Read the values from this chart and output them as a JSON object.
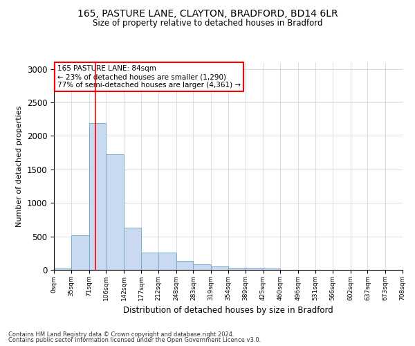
{
  "title_line1": "165, PASTURE LANE, CLAYTON, BRADFORD, BD14 6LR",
  "title_line2": "Size of property relative to detached houses in Bradford",
  "xlabel": "Distribution of detached houses by size in Bradford",
  "ylabel": "Number of detached properties",
  "footer_line1": "Contains HM Land Registry data © Crown copyright and database right 2024.",
  "footer_line2": "Contains public sector information licensed under the Open Government Licence v3.0.",
  "annotation_line1": "165 PASTURE LANE: 84sqm",
  "annotation_line2": "← 23% of detached houses are smaller (1,290)",
  "annotation_line3": "77% of semi-detached houses are larger (4,361) →",
  "property_sqm": 84,
  "bin_edges": [
    0,
    35,
    71,
    106,
    142,
    177,
    212,
    248,
    283,
    319,
    354,
    389,
    425,
    460,
    496,
    531,
    566,
    602,
    637,
    673,
    708
  ],
  "bar_heights": [
    25,
    520,
    2190,
    1730,
    635,
    260,
    260,
    130,
    80,
    55,
    35,
    30,
    20,
    5,
    5,
    0,
    0,
    0,
    0,
    0
  ],
  "bar_color": "#c9d9f0",
  "bar_edge_color": "#7aaad0",
  "red_line_x": 84,
  "ylim": [
    0,
    3100
  ],
  "yticks": [
    0,
    500,
    1000,
    1500,
    2000,
    2500,
    3000
  ],
  "background_color": "#ffffff",
  "plot_bg_color": "#ffffff"
}
